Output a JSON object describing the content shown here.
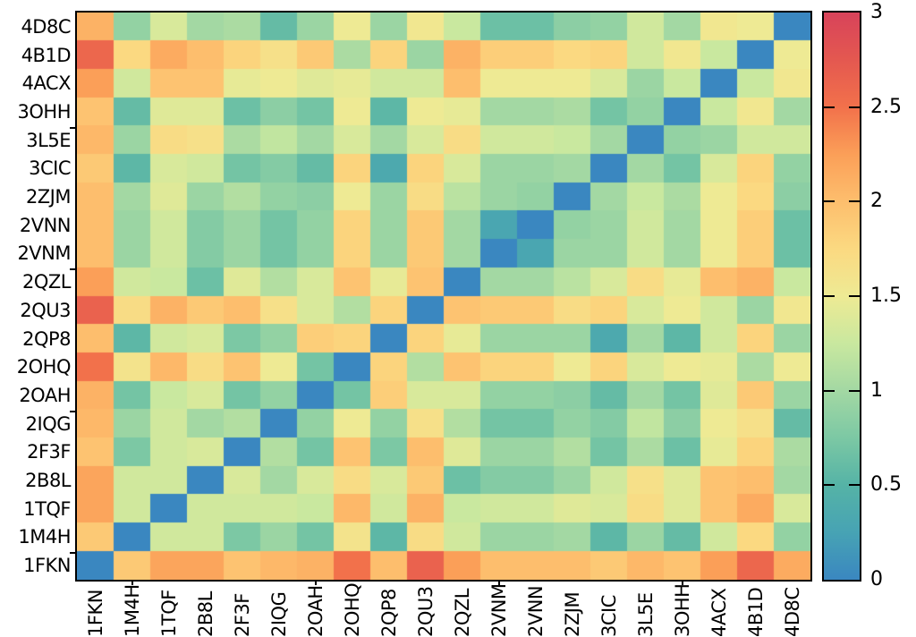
{
  "chart_data": {
    "type": "heatmap",
    "title": "",
    "xlabel": "",
    "ylabel": "",
    "x_categories": [
      "1FKN",
      "1M4H",
      "1TQF",
      "2B8L",
      "2F3F",
      "2IQG",
      "2OAH",
      "2OHQ",
      "2QP8",
      "2QU3",
      "2QZL",
      "2VNM",
      "2VNN",
      "2ZJM",
      "3CIC",
      "3L5E",
      "3OHH",
      "4ACX",
      "4B1D",
      "4D8C"
    ],
    "y_categories": [
      "4D8C",
      "4B1D",
      "4ACX",
      "3OHH",
      "3L5E",
      "3CIC",
      "2ZJM",
      "2VNN",
      "2VNM",
      "2QZL",
      "2QU3",
      "2QP8",
      "2OHQ",
      "2OAH",
      "2IQG",
      "2F3F",
      "2B8L",
      "1TQF",
      "1M4H",
      "1FKN"
    ],
    "values": [
      [
        2.1,
        0.9,
        1.35,
        1.0,
        1.05,
        0.6,
        0.95,
        1.5,
        0.95,
        1.55,
        1.25,
        0.65,
        0.65,
        0.85,
        0.9,
        1.3,
        1.0,
        1.55,
        1.5,
        0
      ],
      [
        2.6,
        1.75,
        2.15,
        2.0,
        1.8,
        1.65,
        1.9,
        1.05,
        1.8,
        0.95,
        2.1,
        1.85,
        1.85,
        1.75,
        1.8,
        1.3,
        1.55,
        1.25,
        0,
        1.5
      ],
      [
        2.25,
        1.3,
        1.95,
        1.95,
        1.45,
        1.5,
        1.4,
        1.45,
        1.3,
        1.3,
        2.0,
        1.5,
        1.5,
        1.5,
        1.35,
        0.95,
        1.25,
        0,
        1.25,
        1.55
      ],
      [
        1.95,
        0.6,
        1.4,
        1.4,
        0.65,
        0.85,
        0.7,
        1.5,
        0.55,
        1.5,
        1.45,
        1.0,
        1.0,
        1.05,
        0.7,
        0.9,
        0,
        1.25,
        1.55,
        1.0
      ],
      [
        2.05,
        0.95,
        1.7,
        1.65,
        1.05,
        1.2,
        1.0,
        1.35,
        1.0,
        1.35,
        1.7,
        1.3,
        1.3,
        1.25,
        1.0,
        0,
        0.9,
        0.95,
        1.3,
        1.3
      ],
      [
        1.9,
        0.55,
        1.35,
        1.3,
        0.7,
        0.8,
        0.6,
        1.8,
        0.35,
        1.8,
        1.35,
        0.95,
        0.95,
        1.0,
        0,
        1.0,
        0.7,
        1.35,
        1.8,
        0.9
      ],
      [
        2.0,
        1.0,
        1.4,
        0.95,
        1.1,
        0.9,
        0.85,
        1.5,
        0.95,
        1.7,
        1.15,
        0.95,
        0.9,
        0,
        1.0,
        1.25,
        1.05,
        1.5,
        1.75,
        0.85
      ],
      [
        2.0,
        0.95,
        1.3,
        0.8,
        0.95,
        0.7,
        0.9,
        1.8,
        0.95,
        1.9,
        1.0,
        0.3,
        0,
        0.9,
        0.95,
        1.3,
        1.0,
        1.5,
        1.85,
        0.65
      ],
      [
        2.0,
        0.95,
        1.3,
        0.8,
        0.95,
        0.7,
        0.9,
        1.8,
        0.95,
        1.9,
        1.0,
        0,
        0.3,
        0.95,
        0.95,
        1.3,
        1.0,
        1.5,
        1.85,
        0.65
      ],
      [
        2.25,
        1.3,
        1.25,
        0.65,
        1.4,
        1.1,
        1.35,
        1.95,
        1.45,
        1.95,
        0,
        1.0,
        1.0,
        1.15,
        1.35,
        1.7,
        1.45,
        2.0,
        2.1,
        1.25
      ],
      [
        2.65,
        1.7,
        2.1,
        1.9,
        2.0,
        1.65,
        1.35,
        1.1,
        1.8,
        0,
        1.95,
        1.9,
        1.9,
        1.7,
        1.8,
        1.35,
        1.5,
        1.3,
        0.95,
        1.55
      ],
      [
        2.0,
        0.55,
        1.3,
        1.35,
        0.75,
        0.9,
        1.85,
        1.8,
        0,
        1.8,
        1.45,
        0.95,
        0.95,
        0.95,
        0.35,
        1.0,
        0.55,
        1.3,
        1.8,
        0.95
      ],
      [
        2.5,
        1.6,
        2.05,
        1.7,
        1.95,
        1.5,
        0.7,
        0,
        1.8,
        1.1,
        1.95,
        1.8,
        1.8,
        1.5,
        1.8,
        1.35,
        1.5,
        1.45,
        1.05,
        1.5
      ],
      [
        2.1,
        0.7,
        1.25,
        1.35,
        0.7,
        0.9,
        0,
        0.7,
        1.85,
        1.35,
        1.35,
        0.9,
        0.9,
        0.85,
        0.6,
        1.0,
        0.7,
        1.4,
        1.9,
        0.95
      ],
      [
        2.05,
        0.95,
        1.3,
        1.0,
        1.1,
        0,
        0.9,
        1.5,
        0.9,
        1.65,
        1.1,
        0.7,
        0.7,
        0.9,
        0.8,
        1.2,
        0.85,
        1.5,
        1.65,
        0.6
      ],
      [
        1.95,
        0.75,
        1.3,
        1.35,
        0,
        1.1,
        0.7,
        1.95,
        0.75,
        2.0,
        1.4,
        0.95,
        0.95,
        1.1,
        0.7,
        1.05,
        0.65,
        1.45,
        1.8,
        1.05
      ],
      [
        2.2,
        1.3,
        1.3,
        0,
        1.35,
        1.0,
        1.35,
        1.7,
        1.35,
        1.9,
        0.65,
        0.8,
        0.8,
        0.95,
        1.3,
        1.65,
        1.4,
        1.95,
        2.0,
        1.0
      ],
      [
        2.2,
        1.3,
        0,
        1.3,
        1.3,
        1.3,
        1.25,
        2.05,
        1.3,
        2.1,
        1.25,
        1.3,
        1.3,
        1.4,
        1.35,
        1.7,
        1.4,
        1.95,
        2.15,
        1.35
      ],
      [
        1.9,
        0,
        1.3,
        1.3,
        0.75,
        0.95,
        0.7,
        1.6,
        0.55,
        1.7,
        1.3,
        0.95,
        0.95,
        1.0,
        0.55,
        0.95,
        0.6,
        1.3,
        1.75,
        0.9
      ],
      [
        0,
        1.9,
        2.2,
        2.2,
        1.95,
        2.05,
        2.1,
        2.5,
        2.0,
        2.65,
        2.25,
        2.0,
        2.0,
        2.0,
        1.9,
        2.05,
        1.95,
        2.25,
        2.6,
        2.15
      ]
    ],
    "colorbar": {
      "min": 0,
      "max": 3,
      "tick_values": [
        0,
        0.5,
        1,
        1.5,
        2,
        2.5,
        3
      ],
      "tick_labels": [
        "0",
        "0.5",
        "1",
        "1.5",
        "2",
        "2.5",
        "3"
      ],
      "position": "right"
    },
    "colormap_stops": [
      {
        "v": 0.0,
        "c": "#3a87c0"
      },
      {
        "v": 0.25,
        "c": "#47a3b4"
      },
      {
        "v": 0.5,
        "c": "#55b3a6"
      },
      {
        "v": 0.75,
        "c": "#7cc8a4"
      },
      {
        "v": 1.0,
        "c": "#a3d8a3"
      },
      {
        "v": 1.25,
        "c": "#c9e89f"
      },
      {
        "v": 1.5,
        "c": "#eeea94"
      },
      {
        "v": 1.75,
        "c": "#fbd981"
      },
      {
        "v": 2.0,
        "c": "#fdbe6d"
      },
      {
        "v": 2.25,
        "c": "#fb9f58"
      },
      {
        "v": 2.5,
        "c": "#f2714b"
      },
      {
        "v": 2.75,
        "c": "#e45850"
      },
      {
        "v": 3.0,
        "c": "#d8435a"
      }
    ],
    "axis_border_color": "#000000",
    "x_major_tick_indices": [
      1,
      6,
      11,
      16
    ],
    "y_major_tick_rows_from_bottom": [
      0,
      5,
      10,
      15
    ],
    "grid": false
  }
}
